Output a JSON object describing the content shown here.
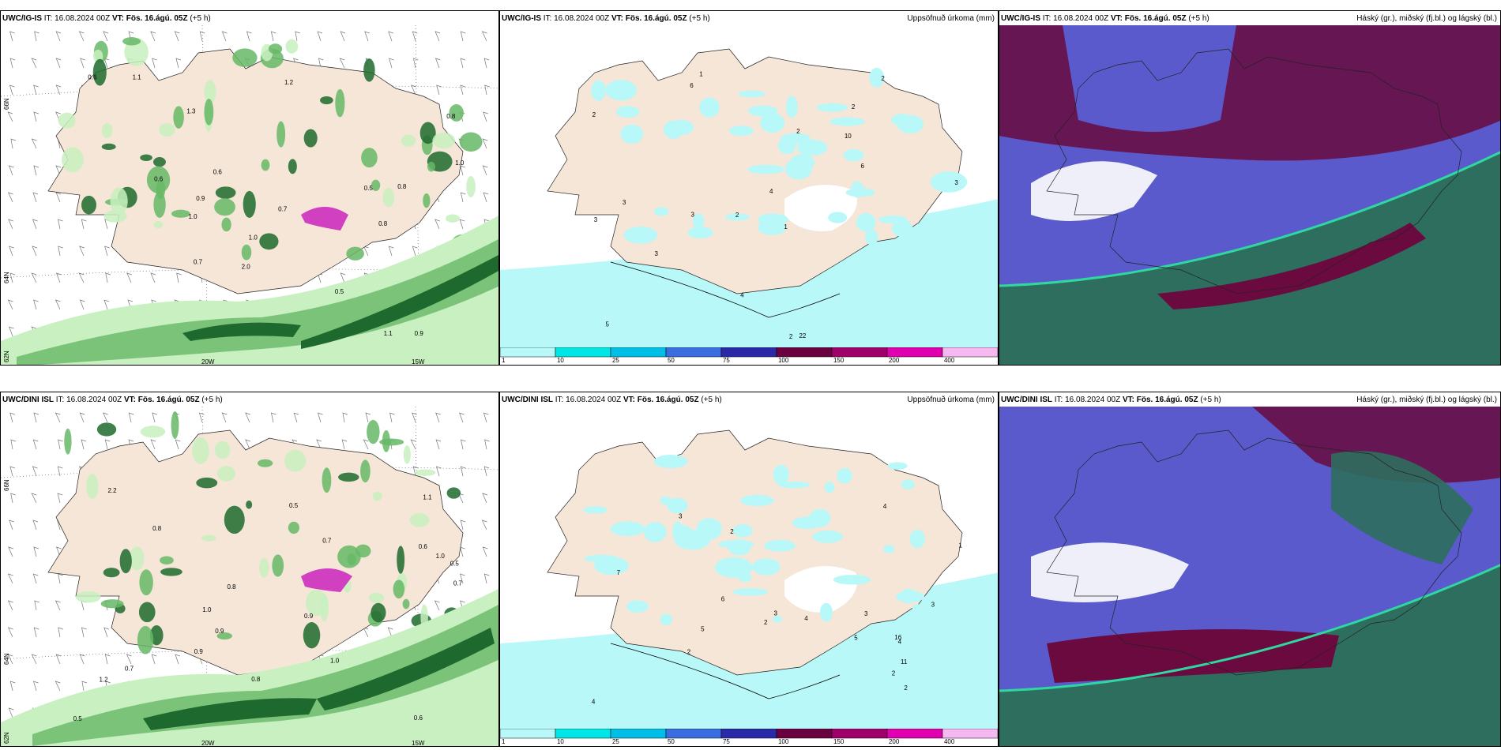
{
  "panels": {
    "p1": {
      "model": "UWC/IG-IS",
      "it": "IT: 16.08.2024 00Z",
      "vt_label": "VT:",
      "vt": "Fös. 16.ágú. 05Z",
      "lead": "(+5 h)",
      "right": ""
    },
    "p2": {
      "model": "UWC/IG-IS",
      "it": "IT: 16.08.2024 00Z",
      "vt_label": "VT:",
      "vt": "Fös. 16.ágú. 05Z",
      "lead": "(+5 h)",
      "right": "Uppsöfnuð úrkoma (mm)"
    },
    "p3": {
      "model": "UWC/IG-IS",
      "it": "IT: 16.08.2024 00Z",
      "vt_label": "VT:",
      "vt": "Fös. 16.ágú. 05Z",
      "lead": "(+5 h)",
      "right": "Háský (gr.), miðský (fj.bl.) og lágský (bl.)"
    },
    "p4": {
      "model": "UWC/DINI ISL",
      "it": "IT: 16.08.2024 00Z",
      "vt_label": "VT:",
      "vt": "Fös. 16.ágú. 05Z",
      "lead": "(+5 h)",
      "right": ""
    },
    "p5": {
      "model": "UWC/DINI ISL",
      "it": "IT: 16.08.2024 00Z",
      "vt_label": "VT:",
      "vt": "Fös. 16.ágú. 05Z",
      "lead": "(+5 h)",
      "right": "Uppsöfnuð úrkoma (mm)"
    },
    "p6": {
      "model": "UWC/DINI ISL",
      "it": "IT: 16.08.2024 00Z",
      "vt_label": "VT:",
      "vt": "Fös. 16.ágú. 05Z",
      "lead": "(+5 h)",
      "right": "Háský (gr.), miðský (fj.bl.) og lágský (bl.)"
    }
  },
  "grid_labels": {
    "lon_20w": "20W",
    "lon_15w": "15W",
    "lat_66n": "66N",
    "lat_64n": "64N",
    "lat_62n": "62N"
  },
  "colorbar": {
    "ticks": [
      "1",
      "10",
      "25",
      "50",
      "75",
      "100",
      "150",
      "200",
      "400"
    ],
    "colors": [
      "#b8f8f8",
      "#00e5e5",
      "#00bfe6",
      "#3a6de0",
      "#2a2aa8",
      "#6a0040",
      "#a0006a",
      "#e000b0",
      "#f5b8f0"
    ]
  },
  "colors": {
    "land": "#f5e6d8",
    "precip_light": "#b8f8f8",
    "rain_light": "#c8f0c0",
    "rain_mid": "#66b866",
    "rain_dark": "#1e6a2e",
    "cloud_high": "#6a0a3e",
    "cloud_mid": "#5a5acc",
    "cloud_low": "#2e6e5e"
  },
  "rain_labels_top": [
    "1.0",
    "0.6",
    "1.1",
    "0.8",
    "0.9",
    "1.3",
    "2.0",
    "1.0",
    "0.7",
    "0.5",
    "0.8",
    "1.2",
    "0.6",
    "1.1",
    "0.9",
    "0.5",
    "0.7",
    "1.0",
    "0.8",
    "0.6"
  ],
  "rain_labels_bottom": [
    "0.7",
    "0.5",
    "0.8",
    "1.0",
    "0.9",
    "0.6",
    "1.1",
    "0.8",
    "1.2",
    "0.5",
    "0.7",
    "0.9",
    "1.0",
    "0.6",
    "2.2",
    "0.8",
    "1.0",
    "0.9",
    "0.5",
    "0.7"
  ],
  "precip_labels_top": [
    "1",
    "2",
    "3",
    "2",
    "1",
    "3",
    "2",
    "10",
    "3",
    "2",
    "4",
    "5",
    "6",
    "3",
    "2",
    "22",
    "4",
    "2",
    "6",
    "3"
  ],
  "precip_labels_bottom": [
    "2",
    "4",
    "3",
    "2",
    "1",
    "5",
    "3",
    "4",
    "16",
    "11",
    "2",
    "3",
    "4",
    "6",
    "5",
    "7",
    "4",
    "2",
    "3",
    "2"
  ]
}
